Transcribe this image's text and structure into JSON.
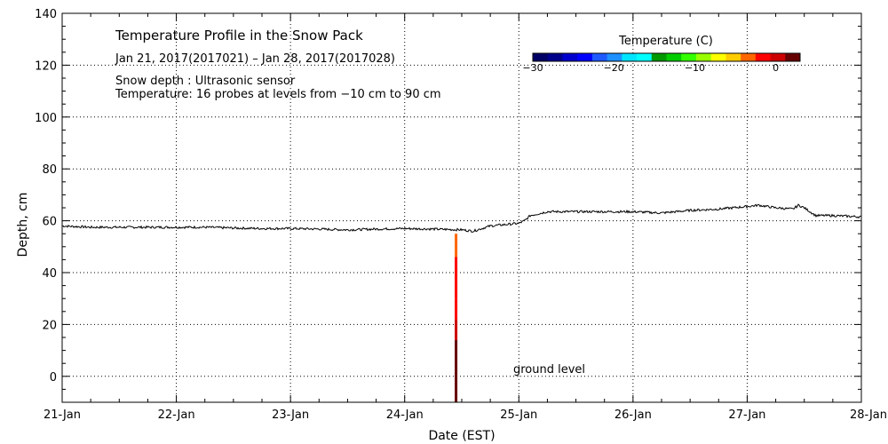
{
  "chart_data": {
    "type": "line",
    "title": "Temperature Profile in the Snow Pack",
    "subtitle": "Jan 21, 2017(2017021) – Jan 28, 2017(2017028)",
    "notes": [
      "Snow depth : Ultrasonic sensor",
      "Temperature: 16 probes at levels from −10 cm to 90 cm"
    ],
    "xlabel": "Date (EST)",
    "ylabel": "Depth, cm",
    "x_ticks": [
      "21-Jan",
      "22-Jan",
      "23-Jan",
      "24-Jan",
      "25-Jan",
      "26-Jan",
      "27-Jan",
      "28-Jan"
    ],
    "xlim_days": [
      0,
      7
    ],
    "ylim": [
      -10,
      140
    ],
    "y_ticks": [
      0,
      20,
      40,
      60,
      80,
      100,
      120,
      140
    ],
    "y_tick_labels": [
      "0",
      "20",
      "40",
      "60",
      "80",
      "100",
      "120",
      "140"
    ],
    "grid": true,
    "annotation": "ground level",
    "colorbar": {
      "title": "Temperature (C)",
      "range": [
        -30,
        3
      ],
      "ticks": [
        -30,
        -20,
        -10,
        0
      ],
      "tick_labels": [
        "−30",
        "−20",
        "−10",
        "0"
      ],
      "colors": [
        "#000066",
        "#00008b",
        "#0000cd",
        "#0000ff",
        "#1e5aff",
        "#1e90ff",
        "#00e5ff",
        "#00ffff",
        "#009900",
        "#00cc00",
        "#33ff00",
        "#99ff00",
        "#ffff00",
        "#ffcc00",
        "#ff6600",
        "#ff0000",
        "#cc0000",
        "#660000"
      ]
    },
    "series": [
      {
        "values_x_days": [
          0,
          0.25,
          0.5,
          0.75,
          1.0,
          1.25,
          1.5,
          1.75,
          2.0,
          2.25,
          2.5,
          2.75,
          3.0,
          3.25,
          3.5,
          3.6,
          3.75,
          4.0,
          4.05,
          4.1,
          4.25,
          4.5,
          4.75,
          5.0,
          5.25,
          5.5,
          5.75,
          6.0,
          6.1,
          6.25,
          6.4,
          6.45,
          6.5,
          6.6,
          6.75,
          7.0
        ],
        "values_y": [
          58,
          57.5,
          57.5,
          57.5,
          57.5,
          57.5,
          57.2,
          57,
          57,
          56.8,
          56.5,
          56.8,
          57,
          56.8,
          56.5,
          56,
          58,
          59,
          60,
          62,
          63.5,
          63.5,
          63.5,
          63.5,
          63,
          64,
          64.5,
          65.5,
          66,
          65,
          64.5,
          66,
          65,
          62,
          62,
          61.5
        ]
      }
    ],
    "temperature_profile": {
      "x_day": 3.45,
      "segments": [
        {
          "from": -10,
          "to": 14,
          "temp": 2
        },
        {
          "from": 14,
          "to": 22,
          "temp": 0
        },
        {
          "from": 22,
          "to": 30,
          "temp": -1
        },
        {
          "from": 30,
          "to": 46,
          "temp": -2
        },
        {
          "from": 46,
          "to": 55,
          "temp": -4
        }
      ]
    }
  }
}
